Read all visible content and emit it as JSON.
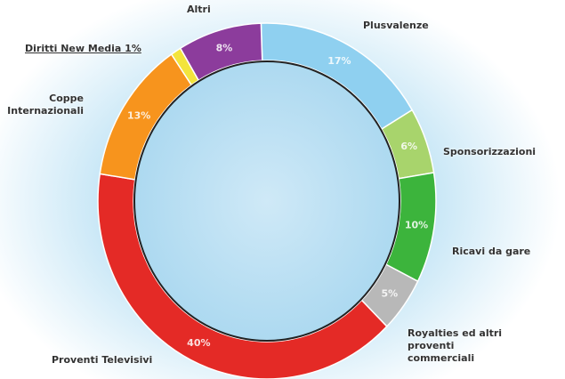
{
  "chart_data": {
    "type": "donut",
    "categories": [
      "Plusvalenze",
      "Sponsorizzazioni",
      "Ricavi da gare",
      "Royalties ed altri proventi commerciali",
      "Proventi Televisivi",
      "Coppe Internazionali",
      "Diritti New Media 1%",
      "Altri"
    ],
    "values": [
      17,
      6,
      10,
      5,
      40,
      13,
      1,
      8
    ],
    "value_labels": [
      "17%",
      "6%",
      "10%",
      "5%",
      "40%",
      "13%",
      null,
      "8%"
    ],
    "colors": [
      "#8fd0f0",
      "#a8d46c",
      "#3cb43c",
      "#b8b8b8",
      "#e42a26",
      "#f7941d",
      "#f3e43c",
      "#8c3c9c"
    ]
  }
}
